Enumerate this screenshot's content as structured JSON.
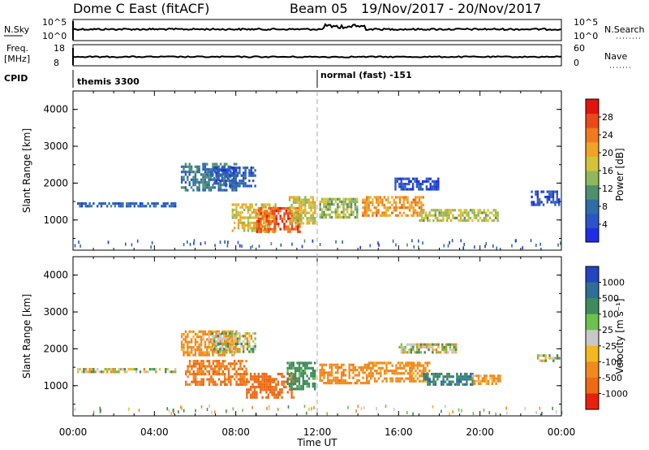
{
  "header": {
    "radar": "Dome C East (fitACF)",
    "beam": "Beam 05",
    "date_range": "19/Nov/2017 - 20/Nov/2017"
  },
  "strips": {
    "nsky_label": "N.Sky",
    "nsky_ticks": [
      "10^5",
      "10^0"
    ],
    "nsearch_ticks": [
      "10^5",
      "10^0"
    ],
    "nsearch_label": "N.Search",
    "freq_label": "Freq.",
    "freq_unit": "[MHz]",
    "freq_ticks": [
      "18",
      "8"
    ],
    "nave_ticks": [
      "60",
      "0"
    ],
    "nave_label": "Nave",
    "cpid_label": "CPID",
    "cpid_segments": [
      {
        "label": "themis 3300",
        "start_hour": 0
      },
      {
        "label": "normal (fast) -151",
        "start_hour": 12
      }
    ]
  },
  "colorbars": {
    "power": {
      "label": "Power [dB]",
      "ticks": [
        "4",
        "8",
        "12",
        "16",
        "20",
        "24",
        "28"
      ],
      "colors": [
        "#1f2ee6",
        "#2a55c8",
        "#2f6ca8",
        "#4f8f70",
        "#8fb85a",
        "#d6c23a",
        "#f0a326",
        "#f07a1f",
        "#ea4a18",
        "#e2140e"
      ]
    },
    "velocity": {
      "label": "Velocity [m s⁻¹]",
      "ticks": [
        "1000",
        "500",
        "100",
        "25",
        "-25",
        "-100",
        "-500",
        "-1000"
      ],
      "colors": [
        "#2445c0",
        "#2f6e9a",
        "#3e8c5c",
        "#6cc24a",
        "#c8c8c8",
        "#f2b81e",
        "#f08a1c",
        "#ee6a16",
        "#e8200e"
      ]
    }
  },
  "chart_data": [
    {
      "type": "heatmap",
      "name": "power",
      "ylabel": "Slant Range [km]",
      "y_ticks": [
        "1000",
        "2000",
        "3000",
        "4000"
      ],
      "ylim": [
        180,
        4500
      ],
      "xlim": [
        0,
        24
      ],
      "cbar_range": [
        0,
        32
      ],
      "description_of_values": "Approximate backscatter regions with representative power (dB)",
      "regions": [
        {
          "x": [
            0.2,
            5.0
          ],
          "y": [
            1380,
            1480
          ],
          "v": 6
        },
        {
          "x": [
            5.3,
            8.0
          ],
          "y": [
            1800,
            2550
          ],
          "v": 9
        },
        {
          "x": [
            6.8,
            9.0
          ],
          "y": [
            1950,
            2450
          ],
          "v": 6
        },
        {
          "x": [
            7.8,
            10.0
          ],
          "y": [
            700,
            1450
          ],
          "v": 18
        },
        {
          "x": [
            9.0,
            11.2
          ],
          "y": [
            700,
            1350
          ],
          "v": 26
        },
        {
          "x": [
            10.6,
            11.9
          ],
          "y": [
            900,
            1650
          ],
          "v": 17
        },
        {
          "x": [
            12.1,
            14.0
          ],
          "y": [
            1050,
            1600
          ],
          "v": 15
        },
        {
          "x": [
            14.2,
            17.2
          ],
          "y": [
            1150,
            1650
          ],
          "v": 22
        },
        {
          "x": [
            17.0,
            20.9
          ],
          "y": [
            1000,
            1300
          ],
          "v": 16
        },
        {
          "x": [
            15.8,
            18.0
          ],
          "y": [
            1850,
            2150
          ],
          "v": 4
        },
        {
          "x": [
            22.5,
            23.9
          ],
          "y": [
            1400,
            1800
          ],
          "v": 5
        }
      ]
    },
    {
      "type": "heatmap",
      "name": "velocity",
      "ylabel": "Slant Range [km]",
      "y_ticks": [
        "1000",
        "2000",
        "3000",
        "4000"
      ],
      "ylim": [
        180,
        4500
      ],
      "xlim": [
        0,
        24
      ],
      "cbar_ticks": [
        1000,
        500,
        100,
        25,
        -25,
        -100,
        -500,
        -1000
      ],
      "description_of_values": "Approximate backscatter regions with representative velocity (m/s)",
      "regions": [
        {
          "x": [
            0.2,
            5.0
          ],
          "y": [
            1380,
            1480
          ],
          "v": 0
        },
        {
          "x": [
            5.3,
            8.0
          ],
          "y": [
            1850,
            2500
          ],
          "v": -120
        },
        {
          "x": [
            6.8,
            9.0
          ],
          "y": [
            1950,
            2450
          ],
          "v": 0
        },
        {
          "x": [
            5.5,
            8.5
          ],
          "y": [
            1000,
            1700
          ],
          "v": -300
        },
        {
          "x": [
            8.5,
            10.8
          ],
          "y": [
            700,
            1350
          ],
          "v": -400
        },
        {
          "x": [
            10.5,
            11.9
          ],
          "y": [
            900,
            1650
          ],
          "v": 150
        },
        {
          "x": [
            12.1,
            14.5
          ],
          "y": [
            1050,
            1600
          ],
          "v": -200
        },
        {
          "x": [
            14.5,
            17.5
          ],
          "y": [
            1100,
            1650
          ],
          "v": -150
        },
        {
          "x": [
            17.2,
            19.6
          ],
          "y": [
            1050,
            1350
          ],
          "v": 300
        },
        {
          "x": [
            19.6,
            21.0
          ],
          "y": [
            1050,
            1300
          ],
          "v": -110
        },
        {
          "x": [
            16.0,
            18.8
          ],
          "y": [
            1900,
            2150
          ],
          "v": 0
        },
        {
          "x": [
            22.8,
            23.9
          ],
          "y": [
            1650,
            1850
          ],
          "v": 0
        }
      ]
    }
  ],
  "time_axis": {
    "ticks": [
      "00:00",
      "04:00",
      "08:00",
      "12:00",
      "16:00",
      "20:00",
      "00:00"
    ],
    "label": "Time UT"
  }
}
